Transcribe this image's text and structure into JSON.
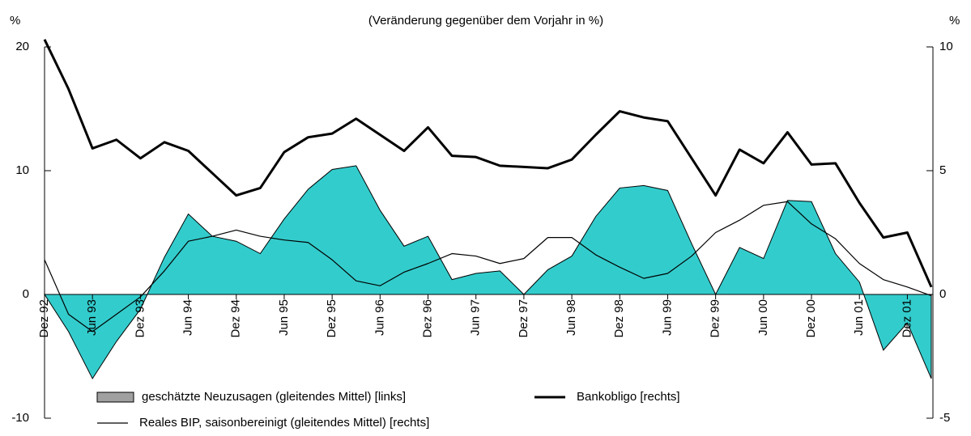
{
  "chart_data": {
    "type": "line",
    "title": "(Veränderung gegenüber dem Vorjahr in %)",
    "y_label": "%",
    "y2_label": "%",
    "categories": [
      "Dez 92",
      null,
      "Jun 93",
      null,
      "Dez 93",
      null,
      "Jun 94",
      null,
      "Dez 94",
      null,
      "Jun 95",
      null,
      "Dez 95",
      null,
      "Jun 96",
      null,
      "Dez 96",
      null,
      "Jun 97",
      null,
      "Dez 97",
      null,
      "Jun 98",
      null,
      "Dez 98",
      null,
      "Jun 99",
      null,
      "Dez 99",
      null,
      "Jun 00",
      null,
      "Dez 00",
      null,
      "Jun 01",
      null,
      "Dez 01",
      null
    ],
    "series": [
      {
        "name": "geschätzte Neuzusagen (gleitendes Mittel) [links]",
        "type": "area",
        "axis": "y",
        "color": "#33cccc",
        "legend_color": "#a0a0a0",
        "values": [
          0,
          -3,
          -6.8,
          -3.8,
          -1.2,
          3,
          6.5,
          4.7,
          4.3,
          3.3,
          6.1,
          8.5,
          10.1,
          10.4,
          6.8,
          3.9,
          4.7,
          1.2,
          1.7,
          1.9,
          0,
          2.0,
          3.1,
          6.3,
          8.6,
          8.8,
          8.4,
          4.1,
          0,
          3.8,
          2.9,
          7.6,
          7.5,
          3.3,
          1.0,
          -4.5,
          -2.3,
          -6.8
        ]
      },
      {
        "name": "Bankobligo [rechts]",
        "type": "line",
        "axis": "y2",
        "color": "#000000",
        "line_width": 3,
        "values": [
          10.3,
          8.3,
          5.9,
          6.25,
          5.5,
          6.15,
          5.8,
          4.9,
          4.0,
          4.3,
          5.75,
          6.35,
          6.5,
          7.1,
          6.45,
          5.8,
          6.75,
          5.6,
          5.55,
          5.2,
          5.15,
          5.1,
          5.45,
          6.45,
          7.4,
          7.15,
          7.0,
          5.5,
          4.0,
          5.85,
          5.3,
          6.55,
          5.25,
          5.3,
          3.7,
          2.3,
          2.5,
          0.3
        ]
      },
      {
        "name": "Reales BIP, saisonbereinigt (gleitendes Mittel) [rechts]",
        "type": "line",
        "axis": "y2",
        "color": "#000000",
        "line_width": 1.2,
        "values": [
          1.4,
          -0.8,
          -1.5,
          -0.8,
          -0.1,
          0.95,
          2.15,
          2.35,
          2.6,
          2.35,
          2.2,
          2.1,
          1.4,
          0.55,
          0.35,
          0.9,
          1.25,
          1.65,
          1.55,
          1.25,
          1.45,
          2.3,
          2.3,
          1.6,
          1.1,
          0.65,
          0.85,
          1.55,
          2.5,
          3.0,
          3.6,
          3.75,
          2.85,
          2.25,
          1.25,
          0.6,
          0.3,
          -0.05
        ]
      }
    ],
    "ylim": [
      -10,
      20
    ],
    "yticks": [
      -10,
      0,
      10,
      20
    ],
    "y2lim": [
      -5,
      10
    ],
    "y2ticks": [
      -5,
      0,
      5,
      10
    ],
    "grid": false
  }
}
